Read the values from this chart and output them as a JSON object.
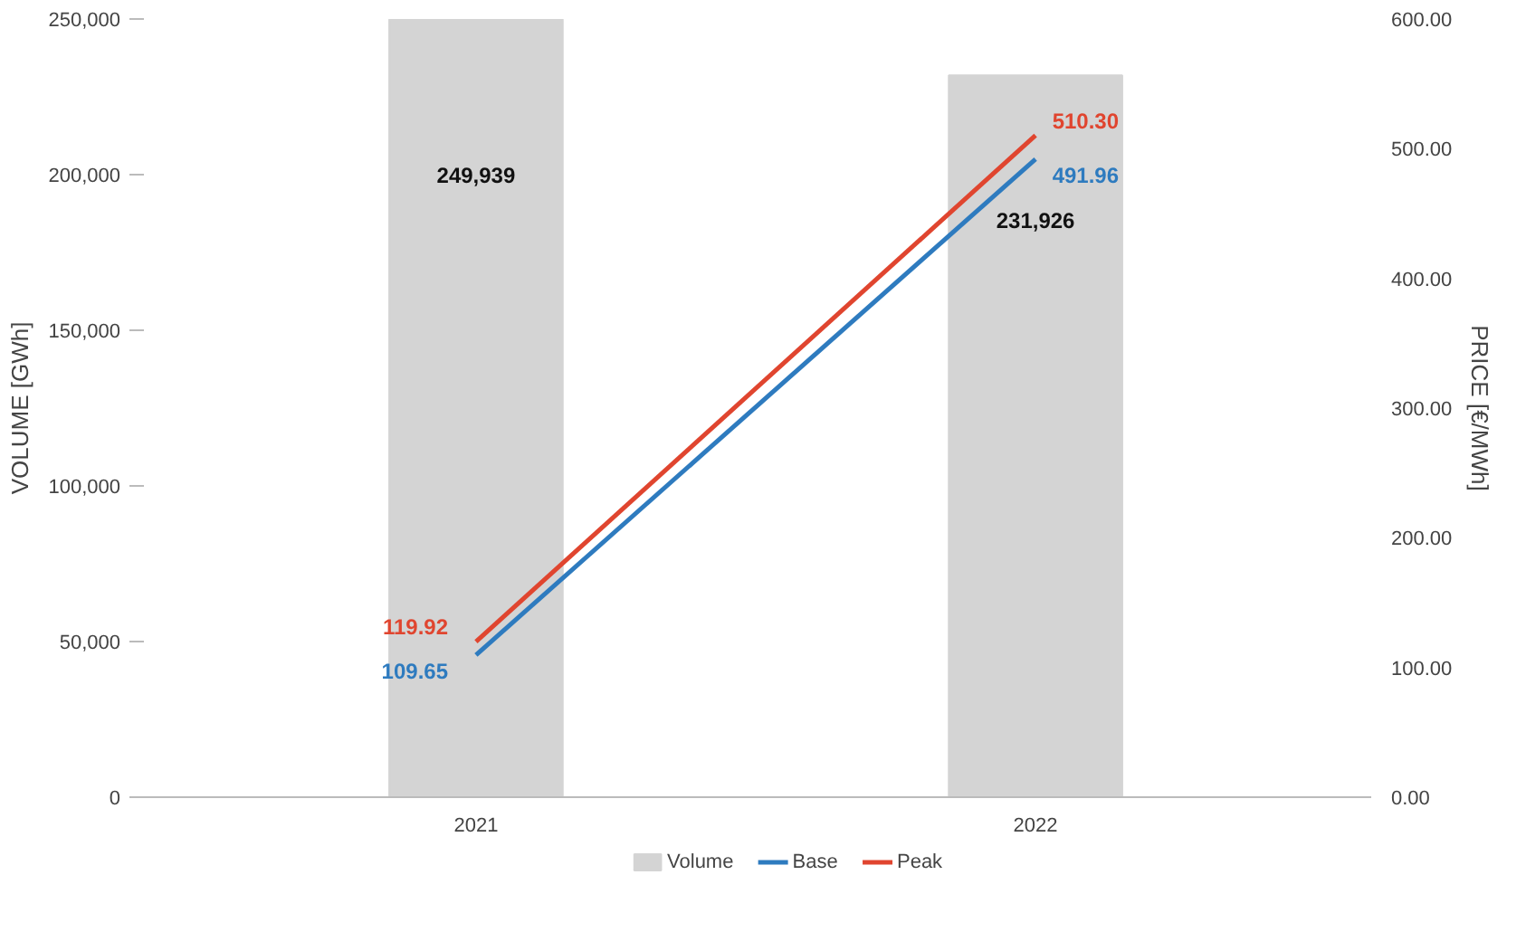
{
  "chart_data": {
    "type": "bar",
    "categories": [
      "2021",
      "2022"
    ],
    "ylabel": "VOLUME [GWh]",
    "y2label": "PRICE [€/MWh]",
    "ylim": [
      0,
      250000
    ],
    "yticks": [
      {
        "value": 0,
        "label": "0"
      },
      {
        "value": 50000,
        "label": "50,000"
      },
      {
        "value": 100000,
        "label": "100,000"
      },
      {
        "value": 150000,
        "label": "150,000"
      },
      {
        "value": 200000,
        "label": "200,000"
      },
      {
        "value": 250000,
        "label": "250,000"
      }
    ],
    "y2lim": [
      0,
      600
    ],
    "y2ticks": [
      {
        "value": 0,
        "label": "0.00"
      },
      {
        "value": 100,
        "label": "100.00"
      },
      {
        "value": 200,
        "label": "200.00"
      },
      {
        "value": 300,
        "label": "300.00"
      },
      {
        "value": 400,
        "label": "400.00"
      },
      {
        "value": 500,
        "label": "500.00"
      },
      {
        "value": 600,
        "label": "600.00"
      }
    ],
    "series": [
      {
        "name": "Volume",
        "color": "#d4d4d4",
        "values": [
          249939,
          231926
        ],
        "value_labels": [
          "249,939",
          "231,926"
        ]
      },
      {
        "name": "Base",
        "type": "line",
        "axis": "y2",
        "color": "#2e7bbf",
        "values": [
          109.65,
          491.96
        ],
        "value_labels": [
          "109.65",
          "491.96"
        ]
      },
      {
        "name": "Peak",
        "type": "line",
        "axis": "y2",
        "color": "#e0452f",
        "values": [
          119.92,
          510.3
        ],
        "value_labels": [
          "119.92",
          "510.30"
        ]
      }
    ],
    "legend": "bottom",
    "grid": false
  }
}
